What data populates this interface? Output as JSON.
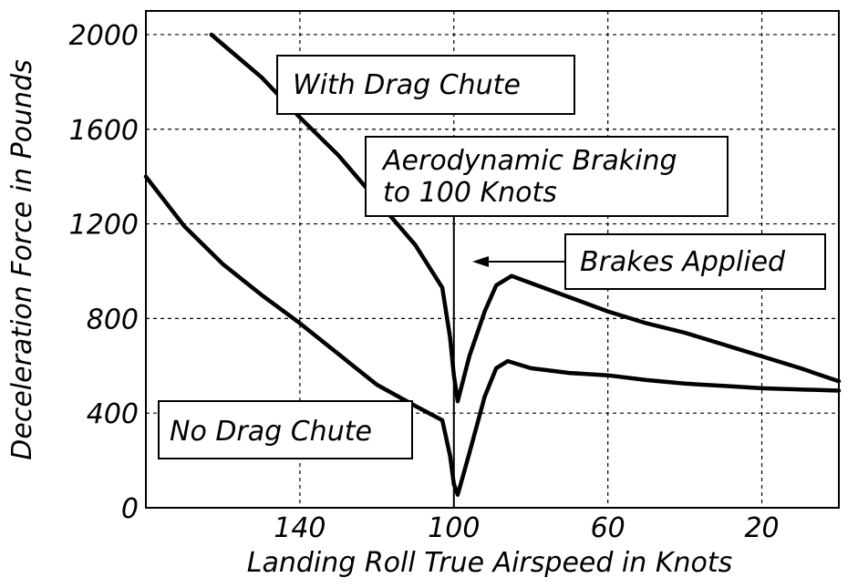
{
  "chart_data": {
    "type": "line",
    "title": "",
    "xlabel": "Landing Roll True Airspeed in Knots",
    "ylabel": "Deceleration Force in Pounds",
    "xlim": [
      180,
      0
    ],
    "ylim": [
      0,
      2100
    ],
    "x_reversed": true,
    "grid": true,
    "xticks": [
      140,
      100,
      60,
      20
    ],
    "yticks": [
      0,
      400,
      800,
      1200,
      1600,
      2000
    ],
    "series": [
      {
        "name": "With Drag Chute",
        "x": [
          163,
          150,
          140,
          130,
          120,
          110,
          103,
          101,
          100,
          99,
          96,
          92,
          89,
          85,
          80,
          70,
          60,
          50,
          40,
          30,
          20,
          10,
          0
        ],
        "y": [
          2000,
          1820,
          1650,
          1490,
          1300,
          1110,
          930,
          720,
          560,
          450,
          640,
          830,
          940,
          980,
          950,
          890,
          830,
          780,
          740,
          690,
          640,
          590,
          535
        ]
      },
      {
        "name": "No Drag Chute",
        "x": [
          180,
          170,
          160,
          150,
          140,
          130,
          120,
          110,
          103,
          101,
          100,
          99,
          96,
          92,
          89,
          86,
          80,
          70,
          60,
          50,
          40,
          30,
          20,
          10,
          0
        ],
        "y": [
          1400,
          1190,
          1030,
          900,
          780,
          650,
          520,
          430,
          370,
          220,
          100,
          55,
          230,
          470,
          590,
          620,
          590,
          570,
          560,
          540,
          525,
          515,
          505,
          500,
          495
        ]
      }
    ],
    "annotations": [
      "With Drag Chute",
      "Aerodynamic Braking",
      "to 100 Knots",
      "Brakes Applied",
      "No Drag Chute"
    ],
    "reference_line_x": 100
  }
}
